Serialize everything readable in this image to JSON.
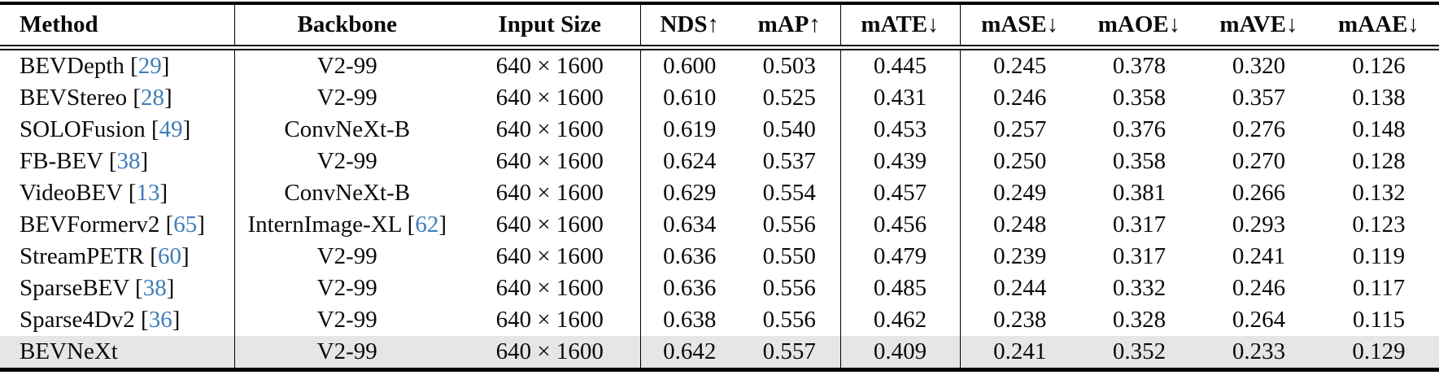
{
  "colors": {
    "citation_link": "#3e7cba",
    "highlight_row_background": "#e6e6e6",
    "text": "#0a0a0a"
  },
  "table": {
    "columns": [
      {
        "label": "Method",
        "align": "left"
      },
      {
        "label": "Backbone",
        "align": "center"
      },
      {
        "label": "Input Size",
        "align": "center"
      },
      {
        "label": "NDS↑",
        "align": "center"
      },
      {
        "label": "mAP↑",
        "align": "center"
      },
      {
        "label": "mATE↓",
        "align": "center"
      },
      {
        "label": "mASE↓",
        "align": "center"
      },
      {
        "label": "mAOE↓",
        "align": "center"
      },
      {
        "label": "mAVE↓",
        "align": "center"
      },
      {
        "label": "mAAE↓",
        "align": "center"
      }
    ],
    "metric_order": [
      "NDS",
      "mAP",
      "mATE",
      "mASE",
      "mAOE",
      "mAVE",
      "mAAE"
    ],
    "rows": [
      {
        "method": "BEVDepth",
        "cite": "29",
        "backbone": "V2-99",
        "backbone_cite": "",
        "input_size": "640 × 1600",
        "metrics": [
          "0.600",
          "0.503",
          "0.445",
          "0.245",
          "0.378",
          "0.320",
          "0.126"
        ],
        "bold_metrics": [],
        "bold_method": false,
        "highlight": false
      },
      {
        "method": "BEVStereo",
        "cite": "28",
        "backbone": "V2-99",
        "backbone_cite": "",
        "input_size": "640 × 1600",
        "metrics": [
          "0.610",
          "0.525",
          "0.431",
          "0.246",
          "0.358",
          "0.357",
          "0.138"
        ],
        "bold_metrics": [],
        "bold_method": false,
        "highlight": false
      },
      {
        "method": "SOLOFusion",
        "cite": "49",
        "backbone": "ConvNeXt-B",
        "backbone_cite": "",
        "input_size": "640 × 1600",
        "metrics": [
          "0.619",
          "0.540",
          "0.453",
          "0.257",
          "0.376",
          "0.276",
          "0.148"
        ],
        "bold_metrics": [],
        "bold_method": false,
        "highlight": false
      },
      {
        "method": "FB-BEV",
        "cite": "38",
        "backbone": "V2-99",
        "backbone_cite": "",
        "input_size": "640 × 1600",
        "metrics": [
          "0.624",
          "0.537",
          "0.439",
          "0.250",
          "0.358",
          "0.270",
          "0.128"
        ],
        "bold_metrics": [],
        "bold_method": false,
        "highlight": false
      },
      {
        "method": "VideoBEV",
        "cite": "13",
        "backbone": "ConvNeXt-B",
        "backbone_cite": "",
        "input_size": "640 × 1600",
        "metrics": [
          "0.629",
          "0.554",
          "0.457",
          "0.249",
          "0.381",
          "0.266",
          "0.132"
        ],
        "bold_metrics": [],
        "bold_method": false,
        "highlight": false
      },
      {
        "method": "BEVFormerv2",
        "cite": "65",
        "backbone": "InternImage-XL",
        "backbone_cite": "62",
        "input_size": "640 × 1600",
        "metrics": [
          "0.634",
          "0.556",
          "0.456",
          "0.248",
          "0.317",
          "0.293",
          "0.123"
        ],
        "bold_metrics": [
          4
        ],
        "bold_method": false,
        "highlight": false
      },
      {
        "method": "StreamPETR",
        "cite": "60",
        "backbone": "V2-99",
        "backbone_cite": "",
        "input_size": "640 × 1600",
        "metrics": [
          "0.636",
          "0.550",
          "0.479",
          "0.239",
          "0.317",
          "0.241",
          "0.119"
        ],
        "bold_metrics": [
          4
        ],
        "bold_method": false,
        "highlight": false
      },
      {
        "method": "SparseBEV",
        "cite": "38",
        "backbone": "V2-99",
        "backbone_cite": "",
        "input_size": "640 × 1600",
        "metrics": [
          "0.636",
          "0.556",
          "0.485",
          "0.244",
          "0.332",
          "0.246",
          "0.117"
        ],
        "bold_metrics": [],
        "bold_method": false,
        "highlight": false
      },
      {
        "method": "Sparse4Dv2",
        "cite": "36",
        "backbone": "V2-99",
        "backbone_cite": "",
        "input_size": "640 × 1600",
        "metrics": [
          "0.638",
          "0.556",
          "0.462",
          "0.238",
          "0.328",
          "0.264",
          "0.115"
        ],
        "bold_metrics": [
          3,
          6
        ],
        "bold_method": false,
        "highlight": false
      },
      {
        "method": "BEVNeXt",
        "cite": "",
        "backbone": "V2-99",
        "backbone_cite": "",
        "input_size": "640 × 1600",
        "metrics": [
          "0.642",
          "0.557",
          "0.409",
          "0.241",
          "0.352",
          "0.233",
          "0.129"
        ],
        "bold_metrics": [
          0,
          1,
          2,
          5
        ],
        "bold_method": true,
        "highlight": true
      }
    ]
  }
}
